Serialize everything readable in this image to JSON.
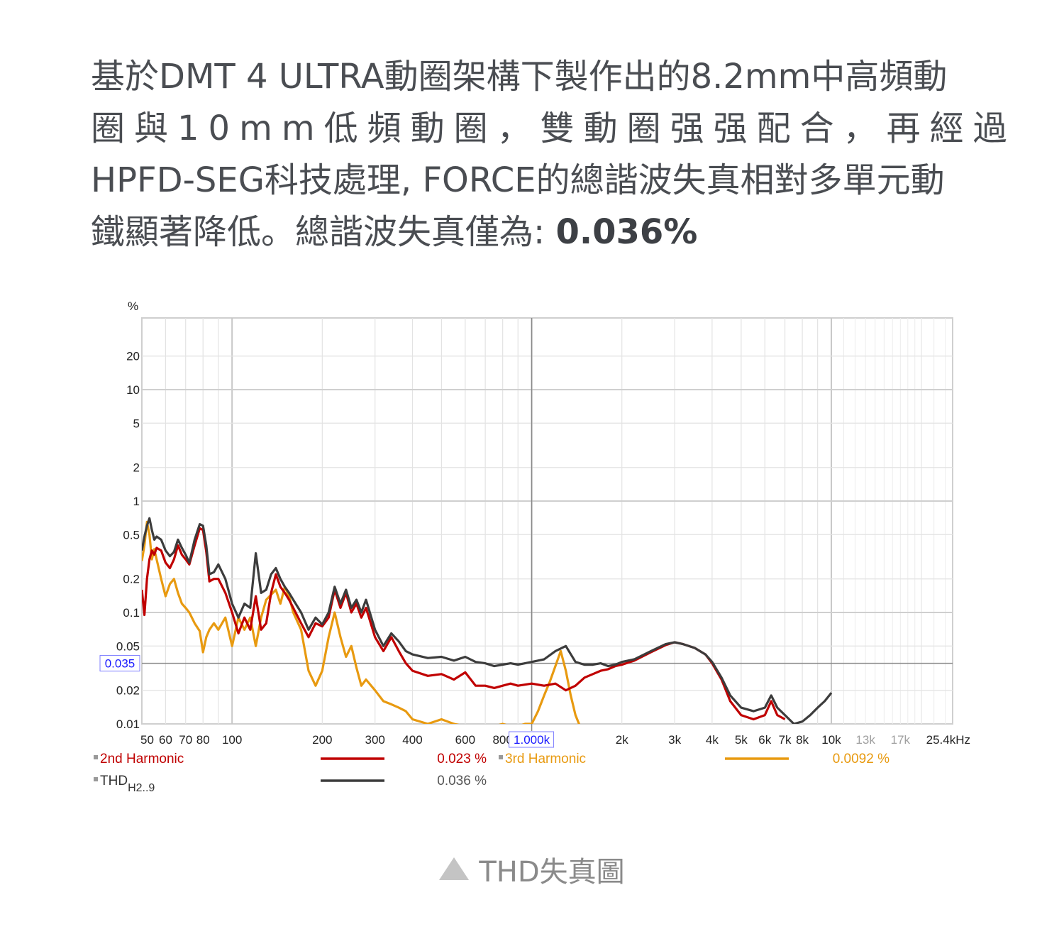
{
  "intro": {
    "line1": "基於DMT 4 ULTRA動圈架構下製作出的8.2mm中高頻動",
    "line2": "圈與10mm低頻動圈，雙動圈强强配合，再經過",
    "line3": "HPFD-SEG科技處理, FORCE的總諧波失真相對多單元動",
    "line4_prefix": "鐵顯著降低。總諧波失真僅為: ",
    "line4_value": "0.036%"
  },
  "caption": {
    "icon": "triangle-up-icon",
    "text": "THD失真圖"
  },
  "colors": {
    "h2": "#c00000",
    "h3": "#e89a10",
    "thd": "#3c3c3c",
    "cursor_blue": "#1a1aff",
    "grid": "#dddddd",
    "text": "#4a4d52"
  },
  "chart_data": {
    "type": "line",
    "title": "THD失真圖",
    "xlabel": "Hz",
    "ylabel": "%",
    "xscale": "log",
    "yscale": "log",
    "xlim": [
      50,
      25400
    ],
    "ylim": [
      0.01,
      44
    ],
    "grid": true,
    "y_ticks": [
      "20",
      "10",
      "5",
      "2",
      "1",
      "0.5",
      "0.2",
      "0.1",
      "0.05",
      "0.02",
      "0.01"
    ],
    "y_cursor_label": "0.035",
    "x_ticks": [
      "50",
      "60",
      "70",
      "80",
      "100",
      "200",
      "300",
      "400",
      "600",
      "800",
      "1.000k",
      "2k",
      "3k",
      "4k",
      "5k",
      "6k",
      "7k",
      "8k",
      "10k",
      "13k",
      "17k",
      "25.4kHz"
    ],
    "x_cursor_label": "1.000k",
    "legend": [
      {
        "name": "2nd Harmonic",
        "value": "0.023 %",
        "color": "#c00000"
      },
      {
        "name": "3rd Harmonic",
        "value": "0.0092 %",
        "color": "#e89a10"
      },
      {
        "name": "THD",
        "subscript": "H2..9",
        "value": "0.036 %",
        "color": "#3c3c3c"
      }
    ],
    "series": [
      {
        "name": "THD H2..9",
        "x": [
          50,
          51,
          52,
          53,
          54,
          55,
          56,
          58,
          60,
          62,
          64,
          66,
          68,
          70,
          72,
          75,
          78,
          80,
          82,
          84,
          87,
          90,
          95,
          100,
          105,
          110,
          115,
          120,
          125,
          130,
          135,
          140,
          145,
          150,
          155,
          160,
          170,
          180,
          190,
          200,
          210,
          220,
          230,
          240,
          250,
          260,
          270,
          280,
          300,
          320,
          340,
          360,
          380,
          400,
          450,
          500,
          550,
          600,
          650,
          700,
          750,
          800,
          850,
          900,
          1000,
          1100,
          1200,
          1300,
          1400,
          1500,
          1600,
          1700,
          1800,
          1900,
          2000,
          2200,
          2500,
          2800,
          3000,
          3200,
          3500,
          3800,
          4000,
          4300,
          4600,
          5000,
          5500,
          6000,
          6300,
          6600,
          7000,
          7500,
          8000,
          8500,
          9000,
          9500,
          10000
        ],
        "values": [
          0.36,
          0.48,
          0.6,
          0.7,
          0.55,
          0.45,
          0.48,
          0.45,
          0.36,
          0.32,
          0.35,
          0.45,
          0.38,
          0.33,
          0.28,
          0.45,
          0.62,
          0.6,
          0.4,
          0.22,
          0.23,
          0.27,
          0.2,
          0.12,
          0.09,
          0.12,
          0.11,
          0.34,
          0.15,
          0.16,
          0.22,
          0.25,
          0.2,
          0.17,
          0.15,
          0.13,
          0.1,
          0.07,
          0.09,
          0.078,
          0.1,
          0.17,
          0.12,
          0.16,
          0.11,
          0.13,
          0.1,
          0.13,
          0.07,
          0.05,
          0.065,
          0.055,
          0.045,
          0.042,
          0.039,
          0.04,
          0.037,
          0.04,
          0.036,
          0.035,
          0.033,
          0.034,
          0.035,
          0.034,
          0.036,
          0.038,
          0.045,
          0.05,
          0.036,
          0.034,
          0.034,
          0.035,
          0.033,
          0.034,
          0.036,
          0.038,
          0.045,
          0.052,
          0.054,
          0.052,
          0.048,
          0.042,
          0.036,
          0.026,
          0.018,
          0.014,
          0.013,
          0.014,
          0.018,
          0.014,
          0.012,
          0.01,
          0.0105,
          0.012,
          0.014,
          0.016,
          0.019
        ]
      },
      {
        "name": "2nd Harmonic",
        "x": [
          50,
          51,
          52,
          53,
          54,
          55,
          56,
          58,
          60,
          62,
          64,
          66,
          68,
          70,
          72,
          75,
          78,
          80,
          82,
          84,
          87,
          90,
          95,
          100,
          105,
          110,
          115,
          120,
          125,
          130,
          135,
          140,
          145,
          150,
          155,
          160,
          170,
          180,
          190,
          200,
          210,
          220,
          230,
          240,
          250,
          260,
          270,
          280,
          300,
          320,
          340,
          360,
          380,
          400,
          450,
          500,
          550,
          600,
          650,
          700,
          750,
          800,
          850,
          900,
          1000,
          1100,
          1200,
          1300,
          1400,
          1500,
          1600,
          1700,
          1800,
          1900,
          2000,
          2200,
          2500,
          2800,
          3000,
          3200,
          3500,
          3800,
          4000,
          4300,
          4600,
          5000,
          5500,
          6000,
          6300,
          6600,
          7000
        ],
        "values": [
          0.16,
          0.095,
          0.2,
          0.3,
          0.36,
          0.33,
          0.38,
          0.36,
          0.28,
          0.25,
          0.3,
          0.4,
          0.33,
          0.3,
          0.27,
          0.4,
          0.57,
          0.55,
          0.35,
          0.19,
          0.2,
          0.2,
          0.15,
          0.1,
          0.065,
          0.09,
          0.07,
          0.14,
          0.07,
          0.08,
          0.15,
          0.22,
          0.17,
          0.15,
          0.13,
          0.11,
          0.08,
          0.06,
          0.08,
          0.075,
          0.09,
          0.16,
          0.11,
          0.15,
          0.1,
          0.12,
          0.09,
          0.11,
          0.06,
          0.045,
          0.06,
          0.045,
          0.035,
          0.03,
          0.027,
          0.028,
          0.025,
          0.029,
          0.022,
          0.022,
          0.021,
          0.022,
          0.023,
          0.022,
          0.023,
          0.022,
          0.023,
          0.02,
          0.022,
          0.026,
          0.028,
          0.03,
          0.031,
          0.033,
          0.034,
          0.037,
          0.044,
          0.051,
          0.054,
          0.052,
          0.048,
          0.042,
          0.035,
          0.025,
          0.016,
          0.012,
          0.011,
          0.012,
          0.016,
          0.012,
          0.011
        ]
      },
      {
        "name": "3rd Harmonic",
        "x": [
          50,
          51,
          52,
          53,
          54,
          55,
          56,
          58,
          60,
          62,
          64,
          66,
          68,
          70,
          72,
          75,
          78,
          80,
          82,
          84,
          87,
          90,
          95,
          100,
          105,
          110,
          115,
          120,
          125,
          130,
          140,
          145,
          150,
          155,
          160,
          170,
          180,
          190,
          200,
          210,
          220,
          230,
          240,
          250,
          260,
          270,
          280,
          300,
          320,
          340,
          360,
          380,
          400,
          450,
          500,
          550,
          600,
          650,
          700,
          750,
          800,
          850,
          900,
          950,
          1000,
          1050,
          1100,
          1150,
          1200,
          1250,
          1300,
          1350,
          1400,
          1450,
          1500
        ],
        "values": [
          0.29,
          0.4,
          0.65,
          0.5,
          0.3,
          0.37,
          0.3,
          0.2,
          0.14,
          0.18,
          0.2,
          0.15,
          0.12,
          0.11,
          0.1,
          0.08,
          0.068,
          0.044,
          0.06,
          0.07,
          0.08,
          0.07,
          0.09,
          0.05,
          0.09,
          0.07,
          0.09,
          0.05,
          0.09,
          0.13,
          0.16,
          0.12,
          0.17,
          0.14,
          0.1,
          0.07,
          0.03,
          0.022,
          0.03,
          0.06,
          0.1,
          0.06,
          0.04,
          0.05,
          0.032,
          0.022,
          0.025,
          0.02,
          0.016,
          0.015,
          0.014,
          0.013,
          0.011,
          0.01,
          0.011,
          0.01,
          0.009,
          0.009,
          0.008,
          0.008,
          0.01,
          0.009,
          0.009,
          0.01,
          0.01,
          0.013,
          0.018,
          0.024,
          0.033,
          0.045,
          0.03,
          0.018,
          0.012,
          0.009,
          0.008
        ]
      }
    ]
  }
}
